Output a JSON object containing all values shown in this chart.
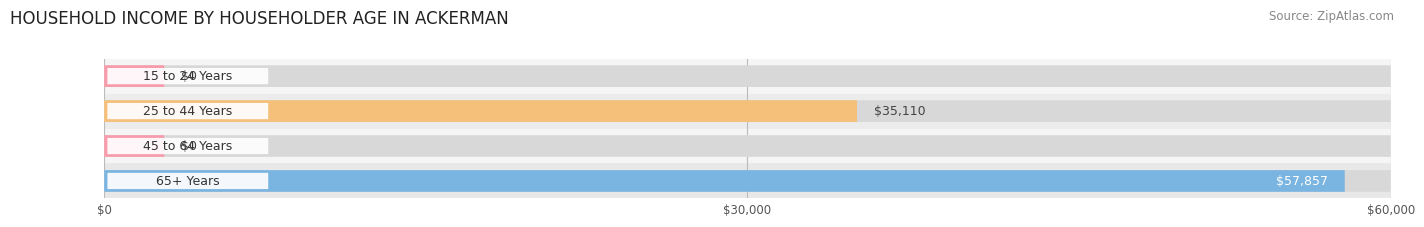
{
  "title": "HOUSEHOLD INCOME BY HOUSEHOLDER AGE IN ACKERMAN",
  "source": "Source: ZipAtlas.com",
  "categories": [
    "15 to 24 Years",
    "25 to 44 Years",
    "45 to 64 Years",
    "65+ Years"
  ],
  "values": [
    0,
    35110,
    0,
    57857
  ],
  "bar_colors": [
    "#f89bab",
    "#f5c07a",
    "#f89bab",
    "#7ab4e0"
  ],
  "value_labels": [
    "$0",
    "$35,110",
    "$0",
    "$57,857"
  ],
  "label_inside": [
    false,
    false,
    false,
    true
  ],
  "xlim": [
    0,
    60000
  ],
  "xticks": [
    0,
    30000,
    60000
  ],
  "xtick_labels": [
    "$0",
    "$30,000",
    "$60,000"
  ],
  "title_fontsize": 12,
  "source_fontsize": 8.5,
  "bar_height": 0.62,
  "row_bg_colors": [
    "#f5f5f5",
    "#ececec",
    "#f5f5f5",
    "#e8e8e8"
  ],
  "stub_value": 2800
}
